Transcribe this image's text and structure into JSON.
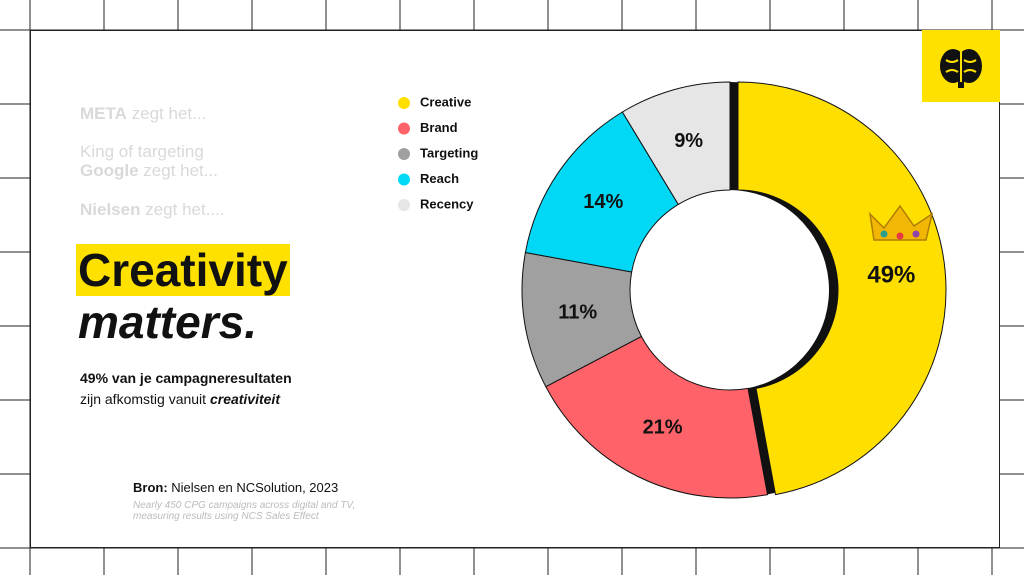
{
  "slide": {
    "faded_lines": [
      {
        "bold": "META",
        "rest": " zegt het..."
      },
      {
        "bold": "",
        "rest": "King of targeting"
      },
      {
        "bold": "Google",
        "rest": " zegt het..."
      },
      {
        "bold": "Nielsen",
        "rest": " zegt het...."
      }
    ],
    "headline": [
      "Creativity",
      "matters."
    ],
    "statement": {
      "line1": "49% van je campagneresultaten",
      "line2": "zijn afkomstig vanuit ",
      "emphasis": "creativiteit"
    },
    "source": {
      "label": "Bron:",
      "text": " Nielsen en NCSolution, 2023"
    },
    "note": [
      "Nearly 450 CPG campaigns across digital and TV,",
      "measuring results using NCS Sales Effect"
    ]
  },
  "chart_data": {
    "type": "donut",
    "categories": [
      "Creative",
      "Brand",
      "Targeting",
      "Reach",
      "Recency"
    ],
    "values": [
      49,
      21,
      11,
      14,
      9
    ],
    "value_labels": [
      "49%",
      "21%",
      "11%",
      "14%",
      "9%"
    ],
    "colors": [
      "#ffdf00",
      "#ff6369",
      "#a0a0a0",
      "#00d8f5",
      "#e6e6e6"
    ],
    "exploded": "Creative"
  }
}
